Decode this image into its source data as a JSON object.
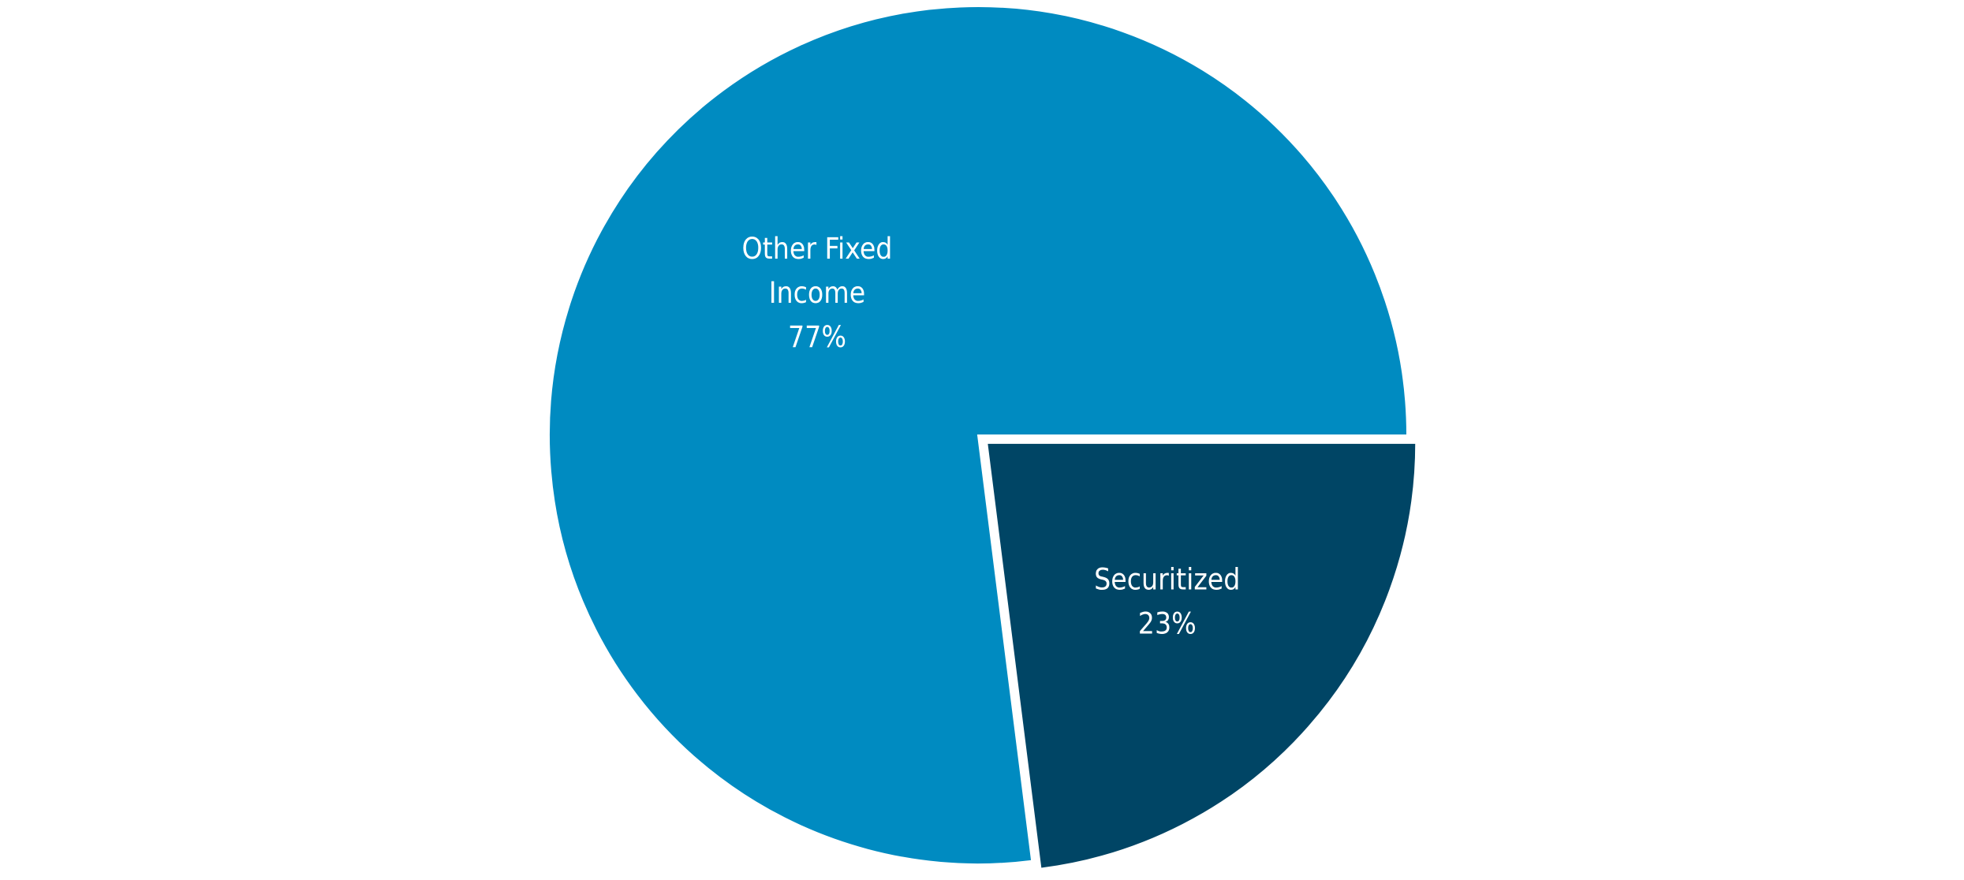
{
  "chart_data": {
    "type": "pie",
    "categories": [
      "Other Fixed Income",
      "Securitized"
    ],
    "values": [
      77,
      23
    ],
    "labels": [
      {
        "lines": [
          "Other Fixed",
          "Income"
        ],
        "value_text": "77%"
      },
      {
        "lines": [
          "Securitized"
        ],
        "value_text": "23%"
      }
    ],
    "colors": [
      "#008bc1",
      "#004565"
    ],
    "exploded": "Securitized",
    "background": "#ffffff",
    "title": "",
    "legend": "none"
  }
}
